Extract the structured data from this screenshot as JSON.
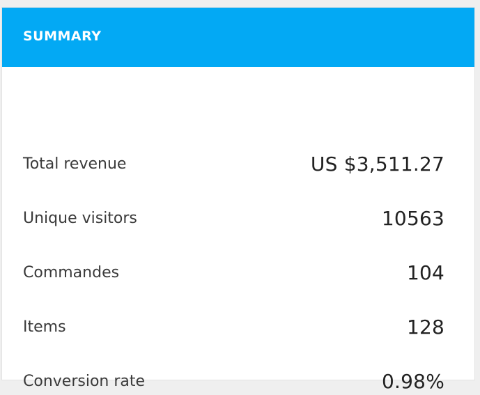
{
  "summary": {
    "title": "SUMMARY",
    "rows": [
      {
        "label": "Total revenue",
        "value": "US $3,511.27"
      },
      {
        "label": "Unique visitors",
        "value": "10563"
      },
      {
        "label": "Commandes",
        "value": "104"
      },
      {
        "label": "Items",
        "value": "128"
      },
      {
        "label": "Conversion rate",
        "value": "0.98%"
      }
    ]
  },
  "colors": {
    "header": "#03A9F4",
    "background": "#efefef",
    "card": "#ffffff"
  }
}
